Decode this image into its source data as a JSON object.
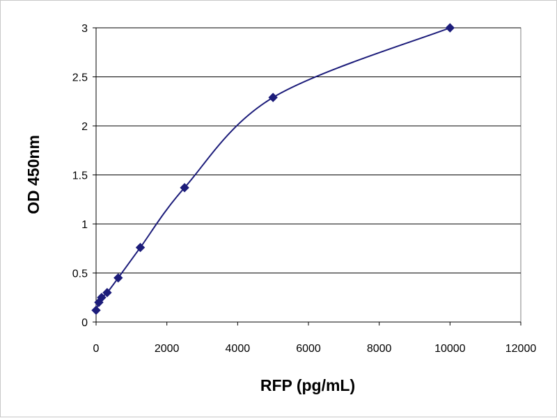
{
  "colors": {
    "series": "#1c1c7a",
    "plot_background": "#ffffff",
    "gridline": "#000000",
    "axis": "#000000"
  },
  "chart_data": {
    "type": "scatter",
    "title": "",
    "xlabel": "RFP (pg/mL)",
    "ylabel": "OD 450nm",
    "xlim": [
      0,
      12000
    ],
    "ylim": [
      0,
      3
    ],
    "x_ticks": [
      0,
      2000,
      4000,
      6000,
      8000,
      10000,
      12000
    ],
    "y_ticks": [
      0,
      0.5,
      1,
      1.5,
      2,
      2.5,
      3
    ],
    "x_tick_labels": [
      "0",
      "2000",
      "4000",
      "6000",
      "8000",
      "10000",
      "12000"
    ],
    "y_tick_labels": [
      "0",
      "0.5",
      "1",
      "1.5",
      "2",
      "2.5",
      "3"
    ],
    "grid": "horizontal",
    "legend": "none",
    "marker": "diamond",
    "line": "smoothed",
    "series": [
      {
        "x": [
          0,
          78,
          156,
          313,
          625,
          1250,
          2500,
          5000,
          10000
        ],
        "y": [
          0.12,
          0.2,
          0.25,
          0.3,
          0.45,
          0.76,
          1.37,
          2.29,
          3.0
        ]
      }
    ]
  }
}
